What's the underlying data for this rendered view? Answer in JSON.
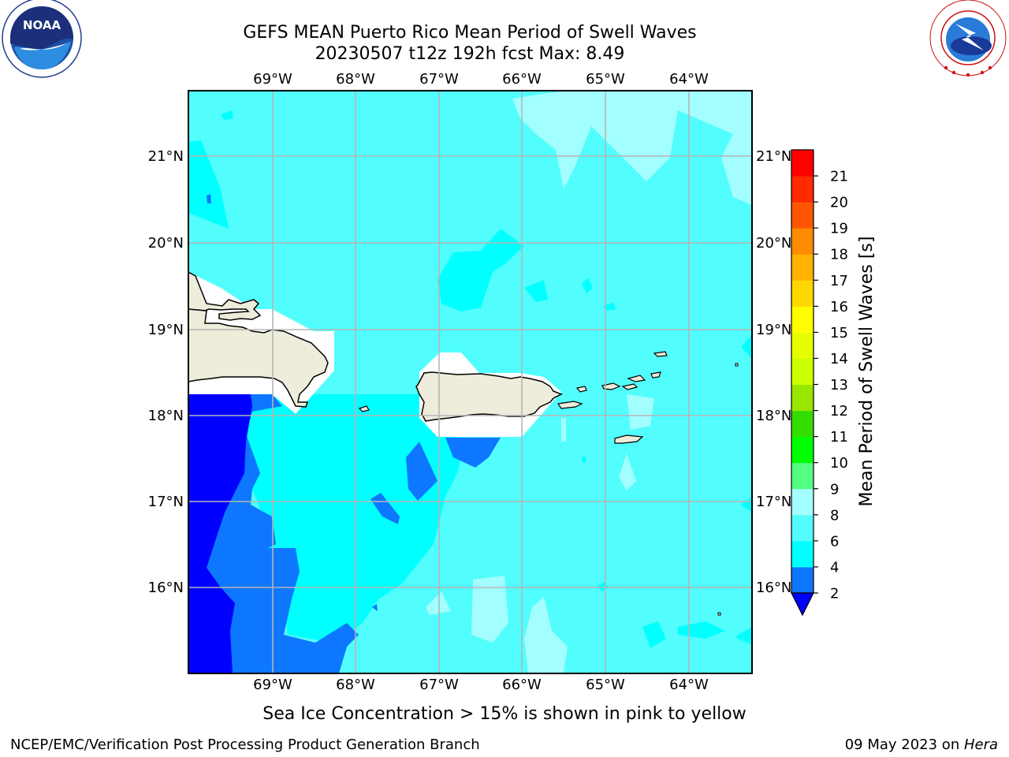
{
  "title": {
    "line1": "GEFS MEAN Puerto Rico Mean Period of Swell Waves",
    "line2": "20230507 t12z 192h fcst   Max: 8.49"
  },
  "logos": {
    "noaa": {
      "text": "NOAA",
      "ring_text": "NATIONAL OCEANIC AND ATMOSPHERIC ADMINISTRATION · U.S. DEPARTMENT OF COMMERCE"
    },
    "nws": {
      "ring_text": "NATIONAL WEATHER SERVICE"
    }
  },
  "map": {
    "lon_range": [
      -70,
      -63.25
    ],
    "lat_range": [
      15,
      21.75
    ],
    "lon_ticks": [
      "69°W",
      "68°W",
      "67°W",
      "66°W",
      "65°W",
      "64°W"
    ],
    "lat_ticks": [
      "21°N",
      "20°N",
      "19°N",
      "18°N",
      "17°N",
      "16°N"
    ],
    "grid": true,
    "land_color": "#eeecda",
    "grid_color": "#b5b5b5"
  },
  "colorbar": {
    "label": "Mean Period of Swell Waves [s]",
    "levels": [
      "2",
      "4",
      "6",
      "8",
      "9",
      "10",
      "11",
      "12",
      "13",
      "14",
      "15",
      "16",
      "17",
      "18",
      "19",
      "20",
      "21"
    ],
    "colors": [
      "#0d77ff",
      "#00ffff",
      "#52fdfd",
      "#a3ffff",
      "#52ff80",
      "#00ff00",
      "#33dd00",
      "#99e600",
      "#ccff00",
      "#e6ff00",
      "#ffff00",
      "#ffd700",
      "#ffb300",
      "#ff8c00",
      "#ff5500",
      "#ff2a00",
      "#ff0000"
    ],
    "extend_color": "#0000ff"
  },
  "legend_colors": {
    "lt2": "#0000ff",
    "2-4": "#0d77ff",
    "4-6": "#00ffff",
    "6-8": "#52fdfd",
    "8-9": "#a3ffff",
    "white": "#ffffff"
  },
  "caption": "Sea Ice Concentration > 15% is shown in pink to yellow",
  "footer": {
    "left": "NCEP/EMC/Verification Post Processing Product Generation Branch",
    "right_prefix": "09 May 2023 on ",
    "right_host": "Hera"
  }
}
